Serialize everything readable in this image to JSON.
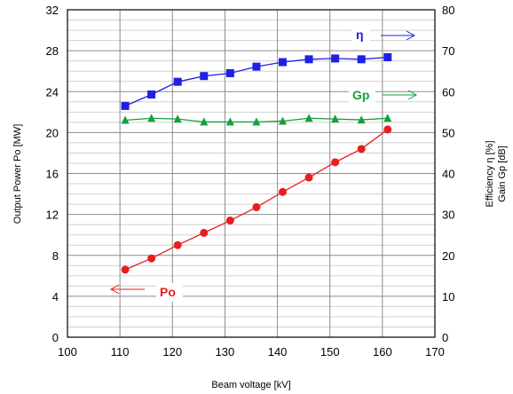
{
  "chart_data": {
    "type": "line",
    "xlabel": "Beam voltage [kV]",
    "ylabel_left": "Output Power Po [MW]",
    "ylabel_right_line1": "Efficiency η [%]",
    "ylabel_right_line2": "Gain Gp [dB]",
    "xlim": [
      100,
      170
    ],
    "ylim_left": [
      0,
      32
    ],
    "ylim_right": [
      0,
      80
    ],
    "x_ticks": [
      "100",
      "110",
      "120",
      "130",
      "140",
      "150",
      "160",
      "170"
    ],
    "y_left_ticks": [
      "0",
      "4",
      "8",
      "12",
      "16",
      "20",
      "24",
      "28",
      "32"
    ],
    "y_right_ticks": [
      "0",
      "10",
      "20",
      "30",
      "40",
      "50",
      "60",
      "70",
      "80"
    ],
    "grid": true,
    "series": [
      {
        "name": "η",
        "axis": "right",
        "color": "#1f1fe6",
        "marker": "square",
        "x": [
          111,
          116,
          121,
          126,
          131,
          136,
          141,
          146,
          151,
          156,
          161
        ],
        "y": [
          56.5,
          59.3,
          62.4,
          63.8,
          64.5,
          66.1,
          67.2,
          67.9,
          68.1,
          67.9,
          68.4
        ]
      },
      {
        "name": "Gp",
        "axis": "right",
        "color": "#14a03c",
        "marker": "triangle",
        "x": [
          111,
          116,
          121,
          126,
          131,
          136,
          141,
          146,
          151,
          156,
          161
        ],
        "y": [
          53.0,
          53.5,
          53.3,
          52.6,
          52.6,
          52.6,
          52.8,
          53.5,
          53.3,
          53.1,
          53.5
        ]
      },
      {
        "name": "Po",
        "axis": "left",
        "color": "#e81e1e",
        "marker": "circle",
        "x": [
          111,
          116,
          121,
          126,
          131,
          136,
          141,
          146,
          151,
          156,
          161
        ],
        "y": [
          6.6,
          7.7,
          9.0,
          10.2,
          11.4,
          12.7,
          14.2,
          15.6,
          17.1,
          18.4,
          20.3
        ]
      }
    ],
    "annotations": [
      {
        "text": "η",
        "series": "η",
        "arrow": "right"
      },
      {
        "text": "Gp",
        "series": "Gp",
        "arrow": "right"
      },
      {
        "text": "Po",
        "series": "Po",
        "arrow": "left"
      }
    ]
  }
}
